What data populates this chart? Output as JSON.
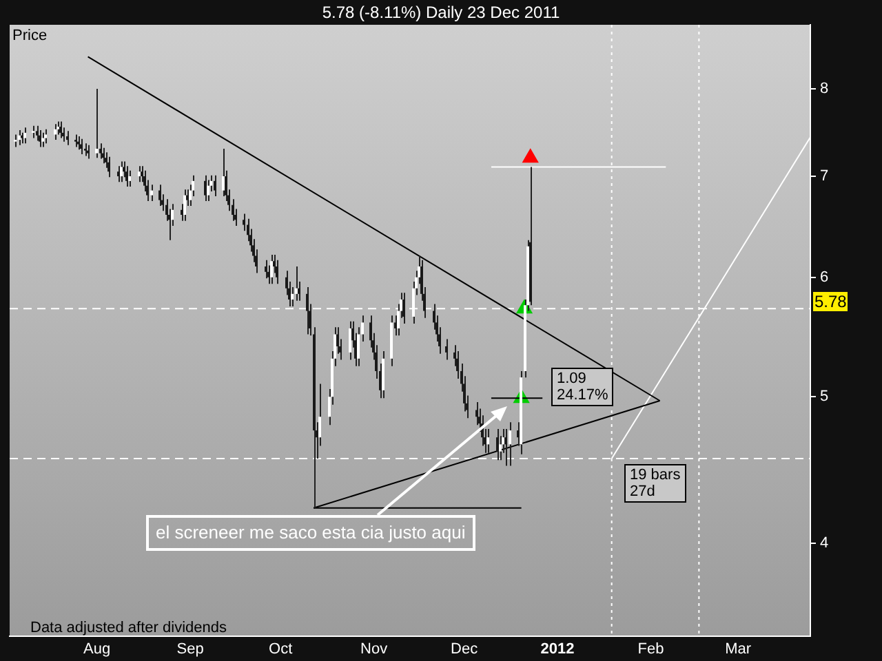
{
  "chart_data": {
    "type": "candlestick",
    "title": "5.78 (-8.11%)     Daily  23 Dec 2011",
    "ylabel": "Price",
    "log": "y",
    "xlim": [
      "2011-07-03",
      "2012-03-25"
    ],
    "xticks": [
      {
        "value": "2011-08-01",
        "label": "Aug"
      },
      {
        "value": "2011-09-01",
        "label": "Sep"
      },
      {
        "value": "2011-10-01",
        "label": "Oct"
      },
      {
        "value": "2011-11-01",
        "label": "Nov"
      },
      {
        "value": "2011-12-01",
        "label": "Dec"
      },
      {
        "value": "2012-01-01",
        "label": "2012"
      },
      {
        "value": "2012-02-01",
        "label": "Feb"
      },
      {
        "value": "2012-03-01",
        "label": "Mar"
      }
    ],
    "ylim": [
      3.47,
      8.82
    ],
    "yticks": [
      4,
      5,
      6,
      7,
      8
    ],
    "grid": false,
    "x": [
      "2011-07-05",
      "2011-07-06",
      "2011-07-07",
      "2011-07-08",
      "2011-07-11",
      "2011-07-12",
      "2011-07-13",
      "2011-07-14",
      "2011-07-15",
      "2011-07-18",
      "2011-07-19",
      "2011-07-20",
      "2011-07-21",
      "2011-07-22",
      "2011-07-25",
      "2011-07-26",
      "2011-07-27",
      "2011-07-28",
      "2011-07-29",
      "2011-08-01",
      "2011-08-02",
      "2011-08-03",
      "2011-08-04",
      "2011-08-05",
      "2011-08-08",
      "2011-08-09",
      "2011-08-10",
      "2011-08-11",
      "2011-08-12",
      "2011-08-15",
      "2011-08-16",
      "2011-08-17",
      "2011-08-18",
      "2011-08-19",
      "2011-08-22",
      "2011-08-23",
      "2011-08-24",
      "2011-08-25",
      "2011-08-26",
      "2011-08-29",
      "2011-08-30",
      "2011-08-31",
      "2011-09-01",
      "2011-09-02",
      "2011-09-06",
      "2011-09-07",
      "2011-09-08",
      "2011-09-09",
      "2011-09-12",
      "2011-09-13",
      "2011-09-14",
      "2011-09-15",
      "2011-09-16",
      "2011-09-19",
      "2011-09-20",
      "2011-09-21",
      "2011-09-22",
      "2011-09-23",
      "2011-09-26",
      "2011-09-27",
      "2011-09-28",
      "2011-09-29",
      "2011-09-30",
      "2011-10-03",
      "2011-10-04",
      "2011-10-05",
      "2011-10-06",
      "2011-10-07",
      "2011-10-10",
      "2011-10-11",
      "2011-10-12",
      "2011-10-13",
      "2011-10-14",
      "2011-10-17",
      "2011-10-18",
      "2011-10-19",
      "2011-10-20",
      "2011-10-21",
      "2011-10-24",
      "2011-10-25",
      "2011-10-26",
      "2011-10-27",
      "2011-10-28",
      "2011-10-31",
      "2011-11-01",
      "2011-11-02",
      "2011-11-03",
      "2011-11-04",
      "2011-11-07",
      "2011-11-08",
      "2011-11-09",
      "2011-11-10",
      "2011-11-11",
      "2011-11-14",
      "2011-11-15",
      "2011-11-16",
      "2011-11-17",
      "2011-11-18",
      "2011-11-21",
      "2011-11-22",
      "2011-11-23",
      "2011-11-25",
      "2011-11-28",
      "2011-11-29",
      "2011-11-30",
      "2011-12-01",
      "2011-12-02",
      "2011-12-05",
      "2011-12-06",
      "2011-12-07",
      "2011-12-08",
      "2011-12-09",
      "2011-12-12",
      "2011-12-13",
      "2011-12-14",
      "2011-12-15",
      "2011-12-16",
      "2011-12-19",
      "2011-12-20",
      "2011-12-21",
      "2011-12-22",
      "2011-12-23"
    ],
    "ohlc": [
      [
        7.38,
        7.46,
        7.32,
        7.4
      ],
      [
        7.4,
        7.51,
        7.34,
        7.45
      ],
      [
        7.45,
        7.48,
        7.36,
        7.42
      ],
      [
        7.42,
        7.54,
        7.36,
        7.48
      ],
      [
        7.48,
        7.56,
        7.42,
        7.5
      ],
      [
        7.5,
        7.56,
        7.39,
        7.45
      ],
      [
        7.45,
        7.51,
        7.32,
        7.38
      ],
      [
        7.38,
        7.48,
        7.32,
        7.42
      ],
      [
        7.42,
        7.52,
        7.36,
        7.46
      ],
      [
        7.46,
        7.58,
        7.4,
        7.52
      ],
      [
        7.52,
        7.61,
        7.46,
        7.55
      ],
      [
        7.55,
        7.61,
        7.42,
        7.48
      ],
      [
        7.48,
        7.54,
        7.38,
        7.44
      ],
      [
        7.44,
        7.5,
        7.34,
        7.4
      ],
      [
        7.4,
        7.46,
        7.32,
        7.38
      ],
      [
        7.38,
        7.44,
        7.29,
        7.35
      ],
      [
        7.35,
        7.41,
        7.24,
        7.3
      ],
      [
        7.3,
        7.36,
        7.22,
        7.28
      ],
      [
        7.28,
        7.34,
        7.19,
        7.25
      ],
      [
        7.25,
        8.0,
        7.2,
        7.3
      ],
      [
        7.3,
        7.36,
        7.19,
        7.25
      ],
      [
        7.25,
        7.31,
        7.14,
        7.2
      ],
      [
        7.2,
        7.26,
        7.09,
        7.15
      ],
      [
        7.15,
        7.21,
        6.99,
        7.05
      ],
      [
        7.05,
        7.11,
        6.94,
        7.0
      ],
      [
        7.0,
        7.16,
        6.94,
        7.1
      ],
      [
        7.1,
        7.16,
        6.99,
        7.05
      ],
      [
        7.05,
        7.11,
        6.89,
        6.95
      ],
      [
        6.95,
        7.06,
        6.89,
        7.0
      ],
      [
        7.0,
        7.11,
        6.94,
        7.05
      ],
      [
        7.05,
        7.11,
        6.94,
        7.0
      ],
      [
        7.0,
        7.06,
        6.84,
        6.9
      ],
      [
        6.9,
        6.96,
        6.74,
        6.8
      ],
      [
        6.8,
        6.91,
        6.74,
        6.85
      ],
      [
        6.85,
        6.91,
        6.69,
        6.75
      ],
      [
        6.75,
        6.81,
        6.64,
        6.7
      ],
      [
        6.7,
        6.76,
        6.54,
        6.6
      ],
      [
        6.6,
        6.66,
        6.35,
        6.55
      ],
      [
        6.55,
        6.71,
        6.49,
        6.65
      ],
      [
        6.65,
        6.71,
        6.54,
        6.6
      ],
      [
        6.6,
        6.86,
        6.54,
        6.8
      ],
      [
        6.8,
        6.86,
        6.69,
        6.75
      ],
      [
        6.75,
        6.91,
        6.69,
        6.85
      ],
      [
        6.85,
        7.01,
        6.79,
        6.95
      ],
      [
        6.95,
        7.01,
        6.74,
        6.8
      ],
      [
        6.8,
        6.96,
        6.74,
        6.9
      ],
      [
        6.9,
        7.01,
        6.84,
        6.95
      ],
      [
        6.95,
        7.01,
        6.79,
        6.85
      ],
      [
        6.85,
        7.3,
        6.79,
        7.0
      ],
      [
        7.0,
        7.06,
        6.74,
        6.8
      ],
      [
        6.8,
        6.86,
        6.64,
        6.7
      ],
      [
        6.7,
        6.76,
        6.54,
        6.6
      ],
      [
        6.6,
        6.66,
        6.49,
        6.55
      ],
      [
        6.55,
        6.61,
        6.44,
        6.5
      ],
      [
        6.5,
        6.56,
        6.34,
        6.4
      ],
      [
        6.4,
        6.46,
        6.24,
        6.3
      ],
      [
        6.3,
        6.36,
        6.14,
        6.2
      ],
      [
        6.2,
        6.26,
        6.04,
        6.1
      ],
      [
        6.1,
        6.16,
        5.99,
        6.05
      ],
      [
        6.05,
        6.11,
        5.94,
        6.0
      ],
      [
        6.0,
        6.21,
        5.94,
        6.15
      ],
      [
        6.15,
        6.21,
        6.04,
        6.1
      ],
      [
        6.1,
        6.16,
        5.94,
        6.0
      ],
      [
        6.0,
        6.06,
        5.84,
        5.9
      ],
      [
        5.9,
        5.96,
        5.74,
        5.8
      ],
      [
        5.8,
        5.91,
        5.74,
        5.85
      ],
      [
        5.85,
        6.1,
        5.79,
        5.9
      ],
      [
        5.9,
        5.96,
        5.79,
        5.85
      ],
      [
        5.85,
        5.91,
        5.5,
        5.7
      ],
      [
        5.7,
        5.76,
        5.49,
        5.55
      ],
      [
        5.5,
        5.56,
        4.22,
        4.75
      ],
      [
        4.75,
        4.81,
        4.55,
        4.7
      ],
      [
        4.7,
        5.1,
        4.64,
        4.85
      ],
      [
        4.85,
        5.06,
        4.79,
        5.0
      ],
      [
        5.0,
        5.36,
        4.94,
        5.3
      ],
      [
        5.3,
        5.56,
        5.24,
        5.5
      ],
      [
        5.5,
        5.56,
        5.34,
        5.4
      ],
      [
        5.4,
        5.46,
        5.29,
        5.35
      ],
      [
        5.35,
        5.61,
        5.29,
        5.55
      ],
      [
        5.55,
        5.61,
        5.39,
        5.45
      ],
      [
        5.45,
        5.51,
        5.24,
        5.3
      ],
      [
        5.3,
        5.56,
        5.24,
        5.5
      ],
      [
        5.5,
        5.66,
        5.44,
        5.6
      ],
      [
        5.6,
        5.66,
        5.39,
        5.45
      ],
      [
        5.45,
        5.51,
        5.29,
        5.35
      ],
      [
        5.35,
        5.41,
        5.14,
        5.2
      ],
      [
        5.2,
        5.26,
        4.99,
        5.05
      ],
      [
        5.05,
        5.36,
        4.99,
        5.3
      ],
      [
        5.3,
        5.66,
        5.24,
        5.6
      ],
      [
        5.6,
        5.66,
        5.49,
        5.55
      ],
      [
        5.55,
        5.76,
        5.49,
        5.7
      ],
      [
        5.7,
        5.86,
        5.64,
        5.8
      ],
      [
        5.8,
        5.86,
        5.59,
        5.65
      ],
      [
        5.65,
        5.96,
        5.59,
        5.9
      ],
      [
        5.9,
        6.06,
        5.84,
        6.0
      ],
      [
        6.0,
        6.2,
        5.94,
        6.1
      ],
      [
        6.1,
        6.16,
        5.79,
        5.85
      ],
      [
        5.85,
        5.91,
        5.64,
        5.7
      ],
      [
        5.7,
        5.76,
        5.54,
        5.6
      ],
      [
        5.6,
        5.66,
        5.44,
        5.5
      ],
      [
        5.5,
        5.56,
        5.34,
        5.4
      ],
      [
        5.4,
        5.46,
        5.29,
        5.35
      ],
      [
        5.35,
        5.41,
        5.24,
        5.3
      ],
      [
        5.3,
        5.36,
        5.14,
        5.2
      ],
      [
        5.2,
        5.26,
        5.04,
        5.1
      ],
      [
        5.1,
        5.16,
        4.89,
        4.95
      ],
      [
        4.95,
        5.01,
        4.84,
        4.9
      ],
      [
        4.9,
        4.96,
        4.79,
        4.85
      ],
      [
        4.85,
        4.91,
        4.74,
        4.8
      ],
      [
        4.8,
        4.86,
        4.64,
        4.7
      ],
      [
        4.7,
        4.76,
        4.59,
        4.65
      ],
      [
        4.65,
        4.76,
        4.59,
        4.7
      ],
      [
        4.7,
        4.76,
        4.54,
        4.6
      ],
      [
        4.6,
        4.71,
        4.54,
        4.65
      ],
      [
        4.65,
        4.76,
        4.59,
        4.7
      ],
      [
        4.7,
        4.76,
        4.5,
        4.65
      ],
      [
        4.65,
        4.81,
        4.5,
        4.75
      ],
      [
        4.75,
        4.81,
        4.64,
        4.7
      ],
      [
        4.65,
        5.2,
        4.58,
        5.15
      ],
      [
        5.2,
        5.8,
        5.15,
        5.75
      ],
      [
        5.75,
        6.35,
        5.7,
        6.29
      ],
      [
        6.33,
        7.1,
        5.75,
        5.78
      ]
    ],
    "series": [
      {
        "type": "line",
        "color": "#000000",
        "x": [
          "2011-07-29",
          "2012-02-04"
        ],
        "values": [
          8.4,
          4.97
        ]
      },
      {
        "type": "line",
        "color": "#000000",
        "x": [
          "2011-10-12",
          "2012-02-04"
        ],
        "values": [
          4.22,
          4.97
        ]
      },
      {
        "type": "line",
        "color": "#000000",
        "x": [
          "2011-10-12",
          "2011-12-20"
        ],
        "values": [
          4.22,
          4.22
        ]
      },
      {
        "type": "line",
        "color": "#000000",
        "x": [
          "2011-12-10",
          "2011-12-27"
        ],
        "values": [
          4.99,
          4.99
        ]
      },
      {
        "type": "line",
        "color": "#ffffff",
        "x": [
          "2011-12-10",
          "2012-02-06"
        ],
        "values": [
          7.1,
          7.1
        ]
      },
      {
        "type": "line",
        "color": "#ffffff",
        "x": [
          "2012-01-19",
          "2012-03-25"
        ],
        "values": [
          4.55,
          7.43
        ]
      },
      {
        "type": "scatter",
        "color": "#00cc00",
        "marker": "triangle",
        "x": [
          "2011-12-20",
          "2011-12-21"
        ],
        "values": [
          4.99,
          5.72
        ]
      },
      {
        "type": "scatter",
        "color": "#ff0000",
        "marker": "triangle",
        "x": [
          "2011-12-23"
        ],
        "values": [
          7.2
        ]
      }
    ],
    "ref_lines": [
      {
        "axis": "y",
        "value": 5.72,
        "color": "#ffffff",
        "line_style": "dashed"
      },
      {
        "axis": "y",
        "value": 4.55,
        "color": "#ffffff",
        "line_style": "dashed"
      },
      {
        "axis": "x",
        "value": "2012-01-19",
        "color": "#ffffff",
        "line_style": "dotted"
      },
      {
        "axis": "x",
        "value": "2012-02-17",
        "color": "#ffffff",
        "line_style": "dotted"
      }
    ],
    "annotations": [
      "el screneer me saco esta cia justo aqui",
      "1.09\n24.17%",
      "19 bars\n27d",
      "Data adjusted after dividends",
      "5.78"
    ]
  }
}
